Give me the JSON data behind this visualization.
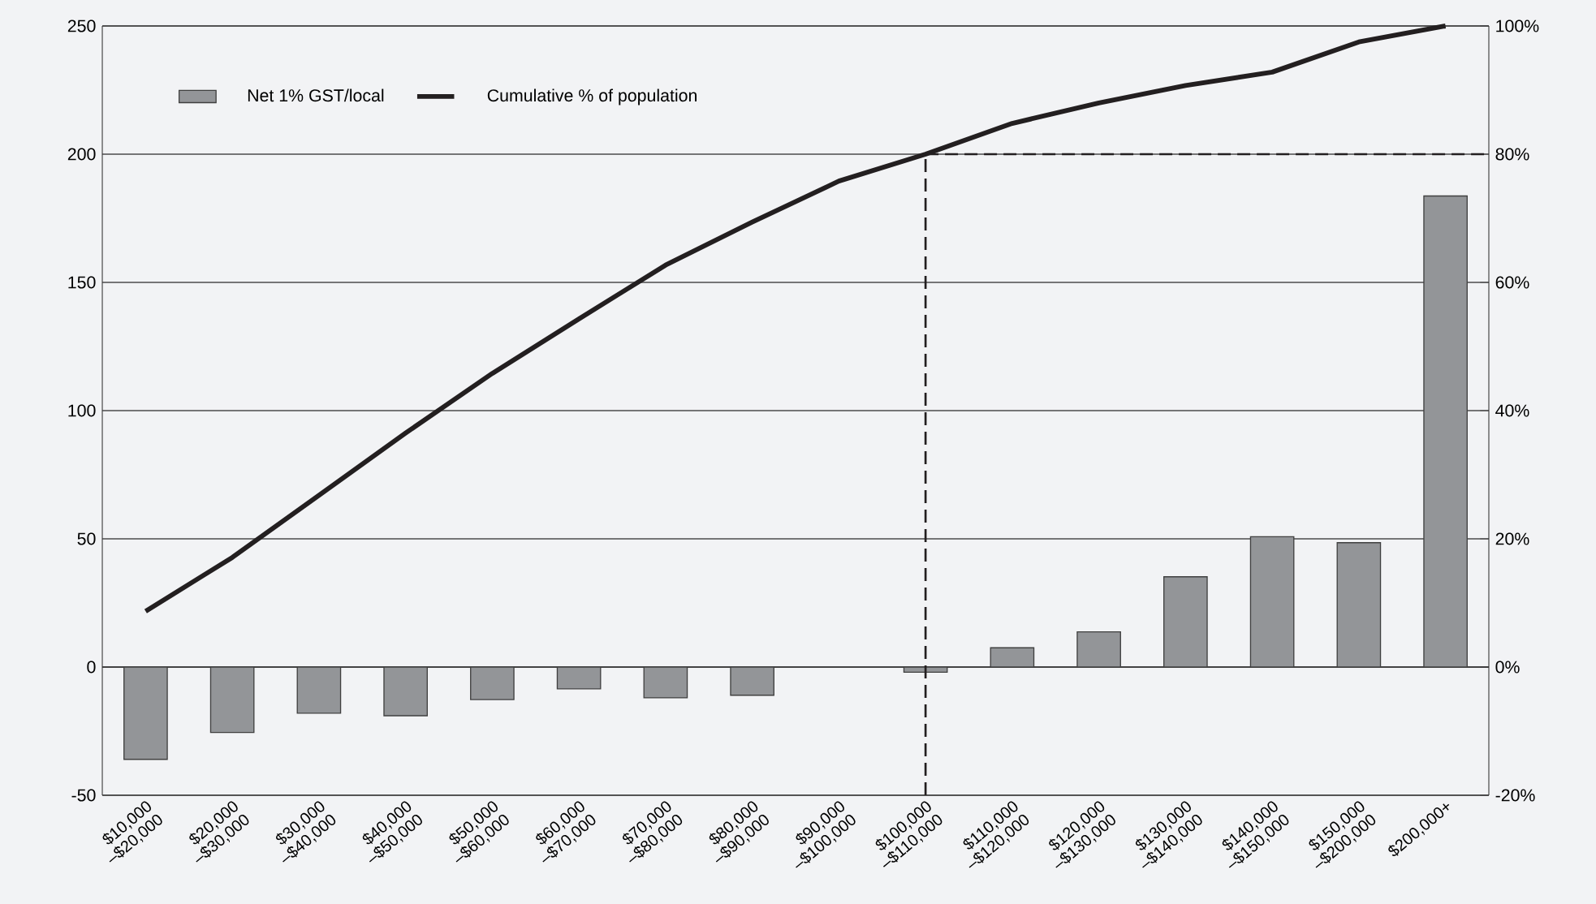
{
  "chart_data": {
    "type": "bar",
    "categories": [
      "$10,000 –$20,000",
      "$20,000 –$30,000",
      "$30,000 –$40,000",
      "$40,000 –$50,000",
      "$50,000 –$60,000",
      "$60,000 –$70,000",
      "$70,000 –$80,000",
      "$80,000 –$90,000",
      "$90,000 –$100,000",
      "$100,000 –$110,000",
      "$110,000 –$120,000",
      "$120,000 –$130,000",
      "$130,000 –$140,000",
      "$140,000 –$150,000",
      "$150,000 –$200,000",
      "$200,000+"
    ],
    "series": [
      {
        "name": "Net 1% GST/local",
        "color": "#939598",
        "values": [
          -36,
          -25.5,
          -18,
          -19,
          -12.7,
          -8.5,
          -12,
          -11,
          null,
          -2,
          7.5,
          13.7,
          35.2,
          50.8,
          48.5,
          183.7
        ]
      },
      {
        "name": "Cumulative % of population",
        "type": "line",
        "axis": "y2",
        "color": "#231f20",
        "values": [
          8.7,
          17.1,
          26.8,
          36.5,
          45.8,
          54.3,
          62.7,
          69.4,
          75.8,
          80,
          84.8,
          88,
          90.7,
          92.8,
          97.5,
          100
        ]
      }
    ],
    "ylim": [
      -50,
      250
    ],
    "yticks": [
      -50,
      0,
      50,
      100,
      150,
      200,
      250
    ],
    "y2lim": [
      -20,
      100
    ],
    "y2ticks": [
      {
        "value": -20,
        "label": "-20%"
      },
      {
        "value": 0,
        "label": "0%"
      },
      {
        "value": 20,
        "label": "20%"
      },
      {
        "value": 40,
        "label": "40%"
      },
      {
        "value": 60,
        "label": "60%"
      },
      {
        "value": 80,
        "label": "80%"
      },
      {
        "value": 100,
        "label": "100%"
      }
    ],
    "ref_lines": [
      {
        "axis": "x",
        "value": "$100,000 –$110,000",
        "line_style": "dashed",
        "color": "#231f20"
      },
      {
        "axis": "y2",
        "value": 80,
        "line_style": "dashed",
        "color": "#231f20"
      }
    ],
    "grid": "y",
    "legend": "top left"
  }
}
